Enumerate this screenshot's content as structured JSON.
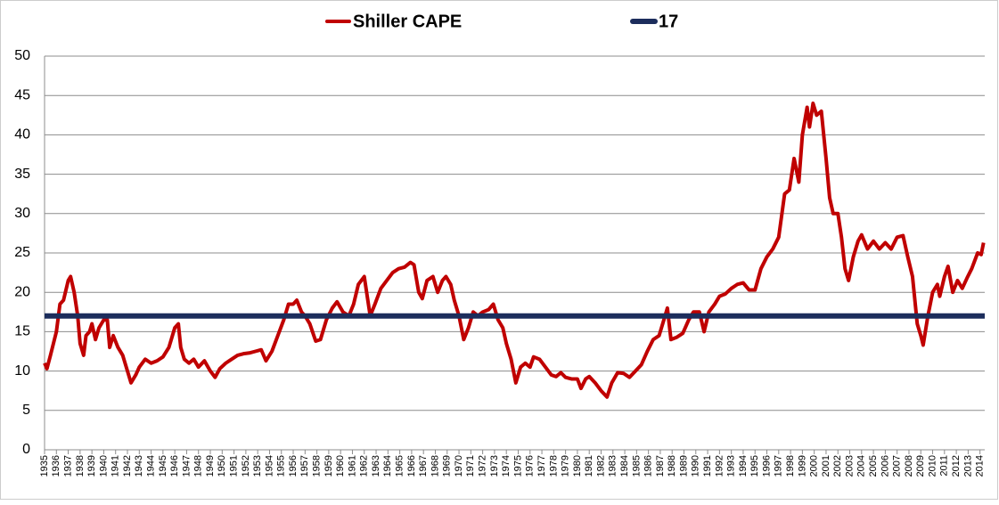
{
  "chart_data": {
    "type": "line",
    "legend": "top",
    "grid": true,
    "xlim": [
      1935,
      2014.4
    ],
    "ylim": [
      0,
      50
    ],
    "yticks": [
      0,
      5,
      10,
      15,
      20,
      25,
      30,
      35,
      40,
      45,
      50
    ],
    "xticks": [
      1935,
      1936,
      1937,
      1938,
      1939,
      1940,
      1941,
      1942,
      1943,
      1944,
      1945,
      1946,
      1947,
      1948,
      1949,
      1950,
      1951,
      1952,
      1953,
      1954,
      1955,
      1956,
      1957,
      1958,
      1959,
      1960,
      1961,
      1962,
      1963,
      1964,
      1965,
      1966,
      1967,
      1968,
      1969,
      1970,
      1971,
      1972,
      1973,
      1974,
      1975,
      1976,
      1977,
      1978,
      1979,
      1980,
      1981,
      1982,
      1983,
      1984,
      1985,
      1986,
      1987,
      1988,
      1989,
      1990,
      1991,
      1992,
      1993,
      1994,
      1995,
      1996,
      1997,
      1998,
      1999,
      2000,
      2001,
      2002,
      2003,
      2004,
      2005,
      2006,
      2007,
      2008,
      2009,
      2010,
      2011,
      2012,
      2013,
      2014
    ],
    "series": [
      {
        "name": "Shiller CAPE",
        "color": "#c00000",
        "x": [
          1935.0,
          1935.2,
          1935.5,
          1936.0,
          1936.3,
          1936.6,
          1937.0,
          1937.2,
          1937.5,
          1937.8,
          1938.0,
          1938.3,
          1938.5,
          1938.8,
          1939.0,
          1939.3,
          1939.6,
          1940.0,
          1940.3,
          1940.5,
          1940.8,
          1941.2,
          1941.6,
          1942.0,
          1942.3,
          1942.7,
          1943.0,
          1943.5,
          1944.0,
          1944.5,
          1945.0,
          1945.5,
          1946.0,
          1946.3,
          1946.5,
          1946.8,
          1947.2,
          1947.6,
          1948.0,
          1948.5,
          1949.0,
          1949.4,
          1949.8,
          1950.3,
          1950.8,
          1951.3,
          1951.8,
          1952.3,
          1952.8,
          1953.3,
          1953.7,
          1954.2,
          1954.7,
          1955.2,
          1955.6,
          1956.0,
          1956.3,
          1956.7,
          1957.0,
          1957.4,
          1957.9,
          1958.3,
          1958.8,
          1959.3,
          1959.7,
          1960.2,
          1960.7,
          1961.1,
          1961.5,
          1962.0,
          1962.3,
          1962.5,
          1962.9,
          1963.4,
          1963.9,
          1964.4,
          1964.9,
          1965.4,
          1965.9,
          1966.2,
          1966.6,
          1966.9,
          1967.3,
          1967.8,
          1968.2,
          1968.6,
          1968.9,
          1969.3,
          1969.6,
          1970.0,
          1970.4,
          1970.8,
          1971.2,
          1971.6,
          1972.0,
          1972.5,
          1972.9,
          1973.3,
          1973.7,
          1974.0,
          1974.4,
          1974.8,
          1975.2,
          1975.6,
          1976.0,
          1976.3,
          1976.8,
          1977.3,
          1977.8,
          1978.2,
          1978.6,
          1979.0,
          1979.5,
          1980.0,
          1980.3,
          1980.7,
          1981.0,
          1981.5,
          1982.0,
          1982.5,
          1982.9,
          1983.4,
          1983.9,
          1984.4,
          1984.9,
          1985.4,
          1985.9,
          1986.4,
          1986.9,
          1987.3,
          1987.6,
          1987.9,
          1988.4,
          1988.9,
          1989.4,
          1989.8,
          1990.3,
          1990.7,
          1991.1,
          1991.6,
          1992.0,
          1992.5,
          1993.0,
          1993.5,
          1994.0,
          1994.5,
          1995.0,
          1995.5,
          1996.0,
          1996.5,
          1997.0,
          1997.5,
          1997.9,
          1998.3,
          1998.7,
          1999.0,
          1999.4,
          1999.6,
          1999.9,
          2000.2,
          2000.6,
          2001.0,
          2001.3,
          2001.6,
          2002.0,
          2002.3,
          2002.6,
          2002.9,
          2003.3,
          2003.7,
          2004.0,
          2004.5,
          2005.0,
          2005.5,
          2006.0,
          2006.5,
          2007.0,
          2007.5,
          2007.9,
          2008.3,
          2008.7,
          2009.0,
          2009.2,
          2009.6,
          2010.0,
          2010.4,
          2010.6,
          2011.0,
          2011.3,
          2011.7,
          2012.1,
          2012.5,
          2012.9,
          2013.3,
          2013.8,
          2014.1,
          2014.3
        ],
        "values": [
          11,
          10.3,
          12,
          15,
          18.5,
          19,
          21.5,
          22,
          20,
          17,
          13.5,
          12,
          14.5,
          15,
          16,
          14,
          15.5,
          16.5,
          16.5,
          13,
          14.5,
          13,
          12,
          10,
          8.5,
          9.5,
          10.5,
          11.5,
          11,
          11.3,
          11.8,
          13,
          15.5,
          16,
          13,
          11.5,
          11,
          11.5,
          10.5,
          11.3,
          10,
          9.2,
          10.3,
          11,
          11.5,
          12,
          12.2,
          12.3,
          12.5,
          12.7,
          11.3,
          12.5,
          14.5,
          16.5,
          18.5,
          18.5,
          19,
          17.5,
          17,
          16,
          13.8,
          14,
          16.5,
          18,
          18.8,
          17.5,
          17,
          18.5,
          21,
          22,
          19,
          17,
          18.5,
          20.5,
          21.5,
          22.5,
          23,
          23.2,
          23.8,
          23.5,
          20,
          19.2,
          21.5,
          22,
          20,
          21.5,
          22,
          21,
          19,
          17,
          14,
          15.5,
          17.5,
          17,
          17.5,
          17.8,
          18.5,
          16.5,
          15.5,
          13.5,
          11.5,
          8.5,
          10.5,
          11,
          10.5,
          11.8,
          11.5,
          10.5,
          9.5,
          9.3,
          9.8,
          9.2,
          9,
          9,
          7.8,
          9,
          9.3,
          8.5,
          7.5,
          6.7,
          8.5,
          9.8,
          9.7,
          9.2,
          10,
          10.8,
          12.5,
          14,
          14.5,
          16.5,
          18,
          14,
          14.3,
          14.8,
          16.5,
          17.5,
          17.5,
          15,
          17.5,
          18.5,
          19.5,
          19.8,
          20.5,
          21,
          21.2,
          20.3,
          20.3,
          23,
          24.5,
          25.5,
          27,
          32.5,
          33,
          37,
          34,
          40,
          43.5,
          41,
          44,
          42.5,
          43,
          37,
          32,
          30,
          30,
          27,
          23,
          21.5,
          24.5,
          26.5,
          27.3,
          25.5,
          26.5,
          25.5,
          26.3,
          25.5,
          27,
          27.2,
          24.5,
          22,
          16,
          14.5,
          13.3,
          17,
          20,
          21,
          19.5,
          22,
          23.3,
          20,
          21.5,
          20.5,
          21.8,
          23,
          25,
          24.8,
          26.3
        ]
      },
      {
        "name": "17",
        "color": "#1c2d5c",
        "x": [
          1935,
          2014.4
        ],
        "values": [
          17,
          17
        ]
      }
    ]
  }
}
